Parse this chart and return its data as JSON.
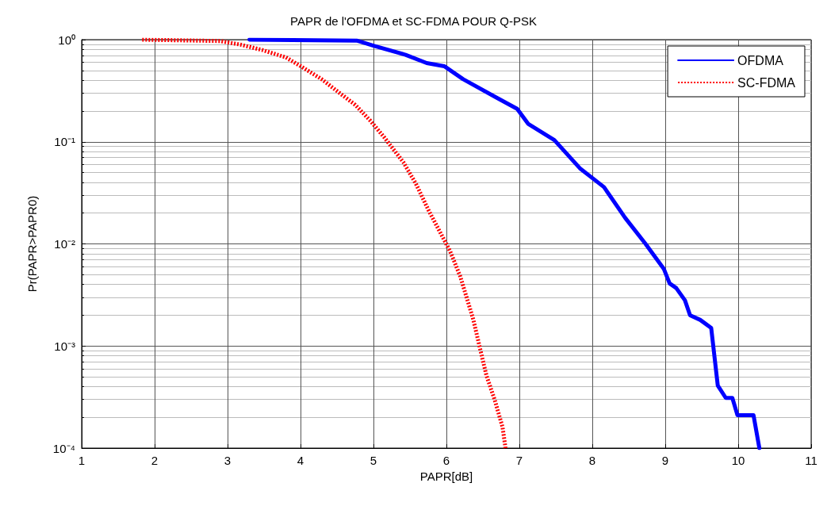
{
  "chart_data": {
    "type": "line",
    "title": "PAPR de l'OFDMA et SC-FDMA POUR Q-PSK",
    "xlabel": "PAPR[dB]",
    "ylabel": "Pr(PAPR>PAPR0)",
    "log": "y",
    "grid": true,
    "legend": "top right",
    "xlim": [
      1,
      11
    ],
    "xticks": [
      1,
      2,
      3,
      4,
      5,
      6,
      7,
      8,
      9,
      10,
      11
    ],
    "ylim": [
      0.0001,
      1
    ],
    "yticks": [
      {
        "value": 0.0001,
        "label": "10⁻⁴"
      },
      {
        "value": 0.001,
        "label": "10⁻³"
      },
      {
        "value": 0.01,
        "label": "10⁻²"
      },
      {
        "value": 0.1,
        "label": "10⁻¹"
      },
      {
        "value": 1,
        "label": "10⁰"
      }
    ],
    "series": [
      {
        "name": "OFDMA",
        "color": "#0000ff",
        "line_style": "solid",
        "x": [
          3.3,
          4.77,
          5.01,
          5.44,
          5.73,
          5.97,
          6.23,
          6.69,
          6.97,
          7.12,
          7.48,
          7.83,
          8.16,
          8.45,
          8.73,
          8.98,
          9.06,
          9.15,
          9.27,
          9.34,
          9.48,
          9.63,
          9.72,
          9.83,
          9.92,
          9.99,
          10.21,
          10.29
        ],
        "values": [
          1,
          0.98,
          0.87,
          0.71,
          0.59,
          0.55,
          0.41,
          0.27,
          0.21,
          0.15,
          0.104,
          0.055,
          0.036,
          0.018,
          0.01,
          0.0057,
          0.0041,
          0.0037,
          0.0028,
          0.002,
          0.0018,
          0.0015,
          0.00041,
          0.00031,
          0.00031,
          0.00021,
          0.00021,
          0.0001
        ]
      },
      {
        "name": "SC-FDMA",
        "color": "#ff0000",
        "line_style": "dotted",
        "x": [
          1.83,
          2.9,
          3.19,
          3.48,
          3.8,
          4.02,
          4.29,
          4.51,
          4.75,
          4.96,
          5.15,
          5.41,
          5.58,
          5.76,
          6.05,
          6.19,
          6.37,
          6.46,
          6.55,
          6.66,
          6.77,
          6.81
        ],
        "values": [
          1,
          0.97,
          0.89,
          0.79,
          0.67,
          0.54,
          0.41,
          0.31,
          0.23,
          0.16,
          0.11,
          0.063,
          0.039,
          0.021,
          0.0085,
          0.0048,
          0.0018,
          0.00095,
          0.00051,
          0.0003,
          0.00016,
          0.0001
        ]
      }
    ]
  }
}
